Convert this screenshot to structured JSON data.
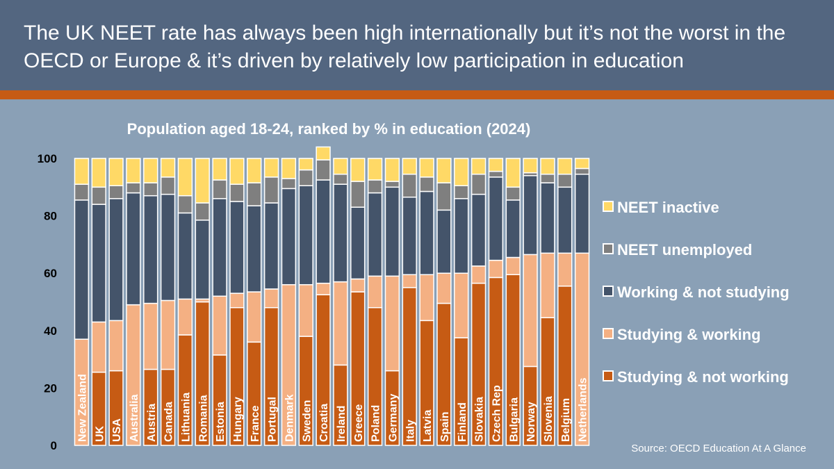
{
  "header": {
    "title": "The UK NEET rate has always been high internationally but it’s not the worst in the OECD or Europe & it’s driven by relatively low participation in education"
  },
  "source": "Source: OECD Education At A Glance",
  "colors": {
    "studying_not_working": "#c65b14",
    "studying_working": "#f4b083",
    "working_not_studying": "#44546a",
    "neet_unemployed": "#7f7f7f",
    "neet_inactive": "#ffd966"
  },
  "chart_data": {
    "type": "bar",
    "stacked": true,
    "title": "Population aged 18-24, ranked by % in education (2024)",
    "xlabel": "",
    "ylabel": "",
    "ylim": [
      0,
      100
    ],
    "yticks": [
      0,
      20,
      40,
      60,
      80,
      100
    ],
    "grid": false,
    "legend_position": "right",
    "categories": [
      "New Zealand",
      "UK",
      "USA",
      "Australia",
      "Austria",
      "Canada",
      "Lithuania",
      "Romania",
      "Estonia",
      "Hungary",
      "France",
      "Portugal",
      "Denmark",
      "Sweden",
      "Croatia",
      "Ireland",
      "Greece",
      "Poland",
      "Germany",
      "Italy",
      "Latvia",
      "Spain",
      "Finland",
      "Slovakia",
      "Czech Rep",
      "Bulgaria",
      "Norway",
      "Slovenia",
      "Belgium",
      "Netherlands"
    ],
    "series": [
      {
        "name": "Studying & not working",
        "color_key": "studying_not_working",
        "values": [
          0,
          25.5,
          26,
          0,
          26.5,
          26.5,
          38.5,
          50,
          31.5,
          48,
          36,
          48,
          0,
          38,
          52.5,
          28,
          53.5,
          48,
          26,
          55,
          43.5,
          49.5,
          37.5,
          56.5,
          58.5,
          59.5,
          27.5,
          44.5,
          55.5,
          0
        ]
      },
      {
        "name": "Studying & working",
        "color_key": "studying_working",
        "values": [
          37,
          17.5,
          17.5,
          49,
          23,
          24,
          12.5,
          1,
          20.5,
          5,
          17.5,
          6.5,
          56,
          18,
          4,
          29,
          4.5,
          11,
          33,
          4.5,
          16,
          10.5,
          22.5,
          6,
          6,
          6,
          39,
          22.5,
          11.5,
          67
        ]
      },
      {
        "name": "Working & not studying",
        "color_key": "working_not_studying",
        "values": [
          48.5,
          41,
          42.5,
          39,
          37.5,
          37,
          30,
          27.5,
          34,
          32,
          30,
          30,
          33.5,
          34.5,
          36,
          34,
          25,
          29,
          31,
          27,
          29,
          22,
          26,
          25,
          29,
          20,
          27.5,
          24.5,
          23,
          27.5
        ]
      },
      {
        "name": "NEET unemployed",
        "color_key": "neet_unemployed",
        "values": [
          5.5,
          6,
          4.5,
          3.5,
          4.5,
          6,
          6,
          6,
          6.5,
          6,
          8,
          9,
          3.5,
          5.5,
          7,
          3.5,
          9,
          4.5,
          2,
          8,
          5,
          9.5,
          4.5,
          7,
          2,
          4.5,
          1,
          3,
          4.5,
          2
        ]
      },
      {
        "name": "NEET inactive",
        "color_key": "neet_inactive",
        "values": [
          9,
          10,
          9.5,
          8.5,
          8.5,
          6.5,
          13,
          15.5,
          7.5,
          9,
          8.5,
          6.5,
          7,
          4,
          4.5,
          5.5,
          8,
          7.5,
          8,
          5.5,
          6.5,
          8.5,
          9.5,
          5.5,
          4.5,
          10,
          5,
          5.5,
          5.5,
          3.5
        ]
      }
    ],
    "legend_order": [
      "NEET inactive",
      "NEET unemployed",
      "Working & not studying",
      "Studying & working",
      "Studying & not working"
    ]
  }
}
